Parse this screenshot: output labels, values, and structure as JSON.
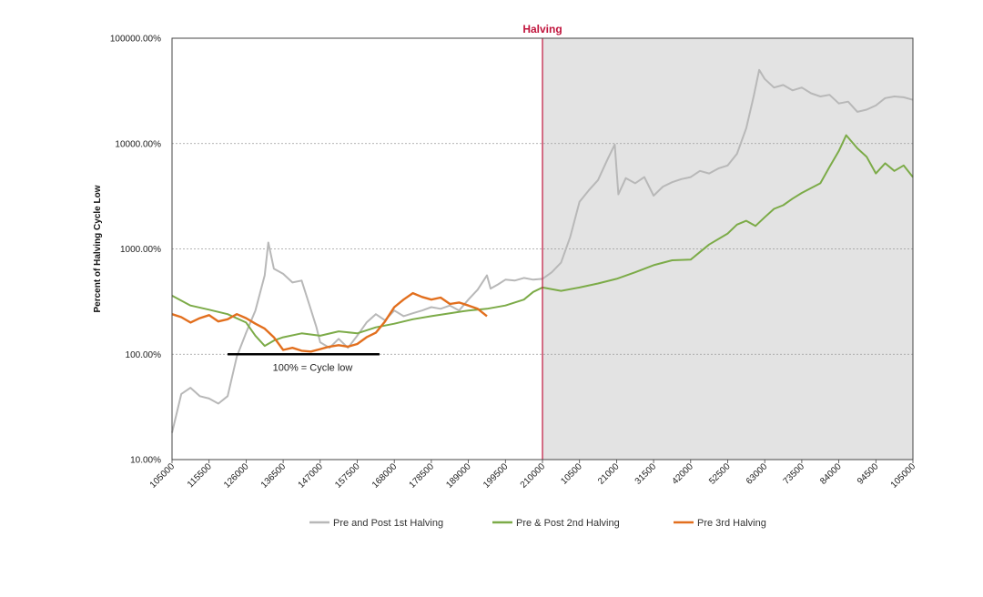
{
  "chart_data": {
    "type": "line",
    "title": "",
    "xlabel": "",
    "ylabel": "Percent of Halving Cycle Low",
    "y_scale": "log",
    "ylim": [
      10,
      100000
    ],
    "y_ticks": [
      10,
      100,
      1000,
      10000,
      100000
    ],
    "y_tick_labels": [
      "10.00%",
      "100.00%",
      "1000.00%",
      "10000.00%",
      "100000.00%"
    ],
    "x_tick_labels": [
      "105000",
      "115500",
      "126000",
      "136500",
      "147000",
      "157500",
      "168000",
      "178500",
      "189000",
      "199500",
      "210000",
      "10500",
      "21000",
      "31500",
      "42000",
      "52500",
      "63000",
      "73500",
      "84000",
      "94500",
      "105000"
    ],
    "x_index_range": [
      0,
      20
    ],
    "grid": "horizontal dotted",
    "legend_position": "bottom",
    "halving_marker": {
      "x": 10,
      "label": "Halving",
      "color": "#c0143c"
    },
    "post_halving_shading": {
      "from": 10,
      "to": 20,
      "color": "#e3e3e3"
    },
    "annotation": {
      "label": "100% = Cycle low",
      "y": 100,
      "x_from": 1.5,
      "x_to": 5.6
    },
    "series": [
      {
        "name": "Pre and Post 1st Halving",
        "color": "#b8b8b8",
        "points": [
          [
            0,
            18
          ],
          [
            0.25,
            42
          ],
          [
            0.5,
            48
          ],
          [
            0.75,
            40
          ],
          [
            1,
            38
          ],
          [
            1.25,
            34
          ],
          [
            1.5,
            40
          ],
          [
            1.75,
            95
          ],
          [
            2,
            160
          ],
          [
            2.25,
            260
          ],
          [
            2.5,
            560
          ],
          [
            2.6,
            1150
          ],
          [
            2.75,
            650
          ],
          [
            3,
            580
          ],
          [
            3.25,
            480
          ],
          [
            3.5,
            500
          ],
          [
            3.7,
            300
          ],
          [
            3.9,
            180
          ],
          [
            4,
            130
          ],
          [
            4.25,
            115
          ],
          [
            4.5,
            140
          ],
          [
            4.75,
            115
          ],
          [
            5,
            150
          ],
          [
            5.25,
            200
          ],
          [
            5.5,
            240
          ],
          [
            5.75,
            210
          ],
          [
            6,
            260
          ],
          [
            6.25,
            230
          ],
          [
            6.5,
            245
          ],
          [
            6.75,
            260
          ],
          [
            7,
            280
          ],
          [
            7.25,
            270
          ],
          [
            7.5,
            290
          ],
          [
            7.75,
            260
          ],
          [
            8,
            330
          ],
          [
            8.25,
            410
          ],
          [
            8.5,
            560
          ],
          [
            8.6,
            420
          ],
          [
            8.8,
            460
          ],
          [
            9,
            510
          ],
          [
            9.25,
            500
          ],
          [
            9.5,
            530
          ],
          [
            9.75,
            510
          ],
          [
            10,
            520
          ],
          [
            10.25,
            600
          ],
          [
            10.5,
            740
          ],
          [
            10.75,
            1300
          ],
          [
            11,
            2800
          ],
          [
            11.25,
            3600
          ],
          [
            11.5,
            4500
          ],
          [
            11.75,
            7000
          ],
          [
            11.95,
            9800
          ],
          [
            12.05,
            3300
          ],
          [
            12.25,
            4700
          ],
          [
            12.5,
            4200
          ],
          [
            12.75,
            4800
          ],
          [
            13,
            3200
          ],
          [
            13.25,
            3900
          ],
          [
            13.5,
            4300
          ],
          [
            13.75,
            4600
          ],
          [
            14,
            4800
          ],
          [
            14.25,
            5500
          ],
          [
            14.5,
            5200
          ],
          [
            14.75,
            5800
          ],
          [
            15,
            6200
          ],
          [
            15.25,
            8000
          ],
          [
            15.5,
            14000
          ],
          [
            15.7,
            28000
          ],
          [
            15.85,
            50000
          ],
          [
            16,
            41000
          ],
          [
            16.25,
            34000
          ],
          [
            16.5,
            36000
          ],
          [
            16.75,
            32000
          ],
          [
            17,
            34000
          ],
          [
            17.25,
            30000
          ],
          [
            17.5,
            28000
          ],
          [
            17.75,
            29000
          ],
          [
            18,
            24000
          ],
          [
            18.25,
            25000
          ],
          [
            18.5,
            20000
          ],
          [
            18.75,
            21000
          ],
          [
            19,
            23000
          ],
          [
            19.25,
            27000
          ],
          [
            19.5,
            28000
          ],
          [
            19.75,
            27500
          ],
          [
            20,
            26000
          ]
        ]
      },
      {
        "name": "Pre & Post 2nd Halving",
        "color": "#7cab48",
        "points": [
          [
            0,
            360
          ],
          [
            0.5,
            290
          ],
          [
            1,
            265
          ],
          [
            1.5,
            240
          ],
          [
            2,
            200
          ],
          [
            2.25,
            150
          ],
          [
            2.5,
            120
          ],
          [
            2.75,
            135
          ],
          [
            3,
            145
          ],
          [
            3.5,
            158
          ],
          [
            4,
            150
          ],
          [
            4.5,
            165
          ],
          [
            5,
            158
          ],
          [
            5.5,
            180
          ],
          [
            6,
            195
          ],
          [
            6.5,
            215
          ],
          [
            7,
            230
          ],
          [
            7.5,
            245
          ],
          [
            8,
            260
          ],
          [
            8.5,
            270
          ],
          [
            9,
            290
          ],
          [
            9.5,
            330
          ],
          [
            9.75,
            390
          ],
          [
            10,
            430
          ],
          [
            10.5,
            400
          ],
          [
            11,
            430
          ],
          [
            11.5,
            470
          ],
          [
            12,
            520
          ],
          [
            12.5,
            600
          ],
          [
            13,
            700
          ],
          [
            13.5,
            780
          ],
          [
            14,
            790
          ],
          [
            14.5,
            1100
          ],
          [
            15,
            1400
          ],
          [
            15.25,
            1700
          ],
          [
            15.5,
            1850
          ],
          [
            15.75,
            1650
          ],
          [
            16,
            2000
          ],
          [
            16.25,
            2400
          ],
          [
            16.5,
            2600
          ],
          [
            16.75,
            3000
          ],
          [
            17,
            3400
          ],
          [
            17.5,
            4200
          ],
          [
            17.75,
            6000
          ],
          [
            18,
            8500
          ],
          [
            18.2,
            12000
          ],
          [
            18.5,
            9000
          ],
          [
            18.75,
            7500
          ],
          [
            19,
            5200
          ],
          [
            19.25,
            6500
          ],
          [
            19.5,
            5500
          ],
          [
            19.75,
            6200
          ],
          [
            20,
            4800
          ]
        ]
      },
      {
        "name": "Pre 3rd Halving",
        "color": "#e26f1e",
        "points": [
          [
            0,
            240
          ],
          [
            0.25,
            225
          ],
          [
            0.5,
            200
          ],
          [
            0.75,
            220
          ],
          [
            1,
            235
          ],
          [
            1.25,
            205
          ],
          [
            1.5,
            215
          ],
          [
            1.75,
            240
          ],
          [
            2,
            220
          ],
          [
            2.25,
            195
          ],
          [
            2.5,
            175
          ],
          [
            2.75,
            145
          ],
          [
            3,
            110
          ],
          [
            3.25,
            115
          ],
          [
            3.5,
            108
          ],
          [
            3.75,
            106
          ],
          [
            4,
            112
          ],
          [
            4.25,
            118
          ],
          [
            4.5,
            122
          ],
          [
            4.75,
            118
          ],
          [
            5,
            125
          ],
          [
            5.25,
            145
          ],
          [
            5.5,
            160
          ],
          [
            5.75,
            205
          ],
          [
            6,
            280
          ],
          [
            6.25,
            330
          ],
          [
            6.5,
            380
          ],
          [
            6.75,
            350
          ],
          [
            7,
            330
          ],
          [
            7.25,
            345
          ],
          [
            7.5,
            300
          ],
          [
            7.75,
            310
          ],
          [
            8,
            290
          ],
          [
            8.25,
            270
          ],
          [
            8.5,
            230
          ]
        ]
      }
    ]
  }
}
